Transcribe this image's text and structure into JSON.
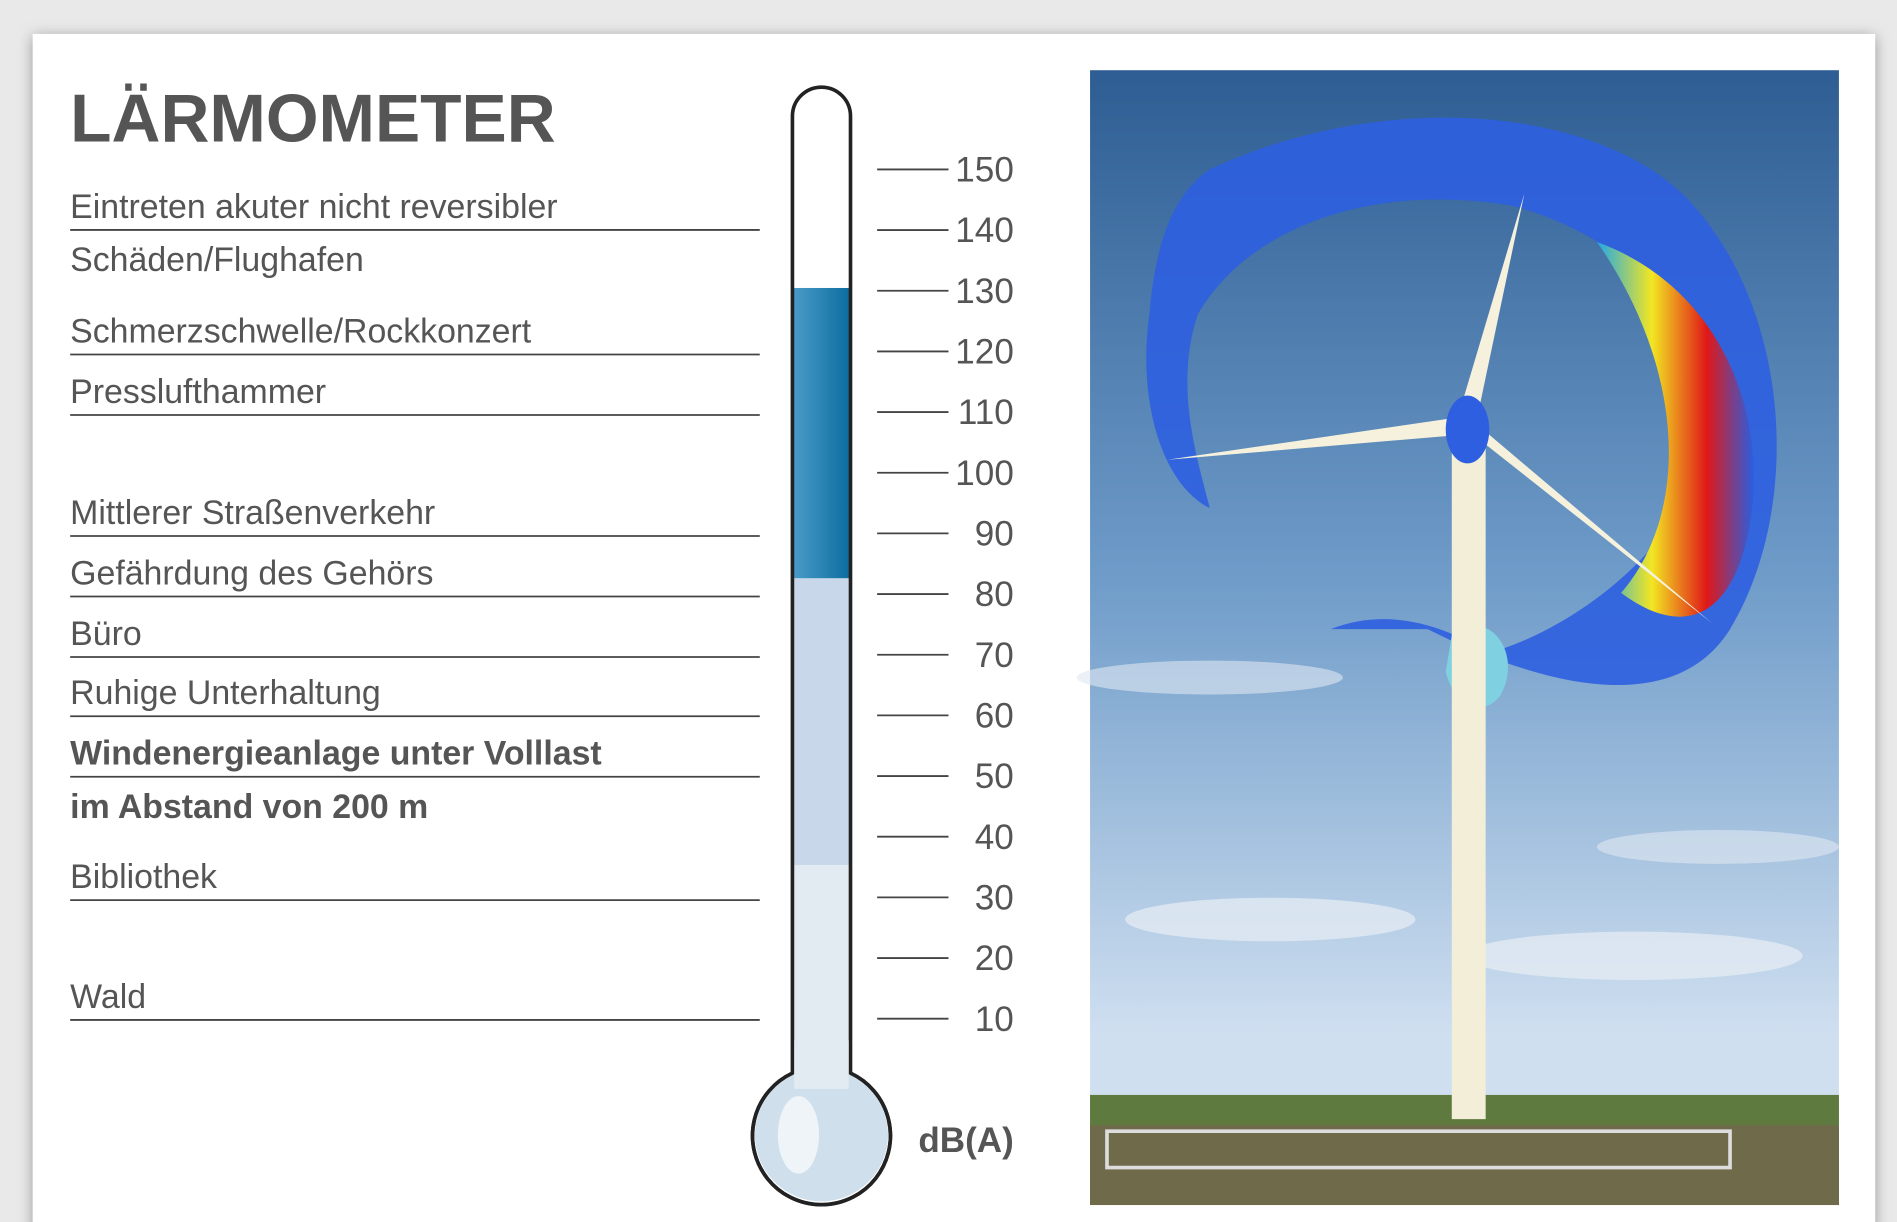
{
  "title": "LÄRMOMETER",
  "items": [
    {
      "lines": [
        "Eintreten akuter nicht reversibler",
        "Schäden/Flughafen"
      ]
    },
    {
      "lines": [
        "Schmerzschwelle/Rockkonzert"
      ]
    },
    {
      "lines": [
        "Presslufthammer"
      ]
    },
    {
      "lines": [
        "Mittlerer Straßenverkehr"
      ]
    },
    {
      "lines": [
        "Gefährdung des Gehörs"
      ]
    },
    {
      "lines": [
        "Büro"
      ]
    },
    {
      "lines": [
        "Ruhige Unterhaltung"
      ]
    },
    {
      "lines": [
        "Windenergieanlage unter Volllast",
        "im Abstand von 200 m"
      ],
      "bold": true
    },
    {
      "lines": [
        "Bibliothek"
      ]
    },
    {
      "lines": [
        "Wald"
      ]
    }
  ],
  "scale": {
    "ticks": [
      150,
      140,
      130,
      120,
      110,
      100,
      90,
      80,
      70,
      60,
      50,
      40,
      30,
      20,
      10
    ],
    "unit": "dB(A)"
  }
}
